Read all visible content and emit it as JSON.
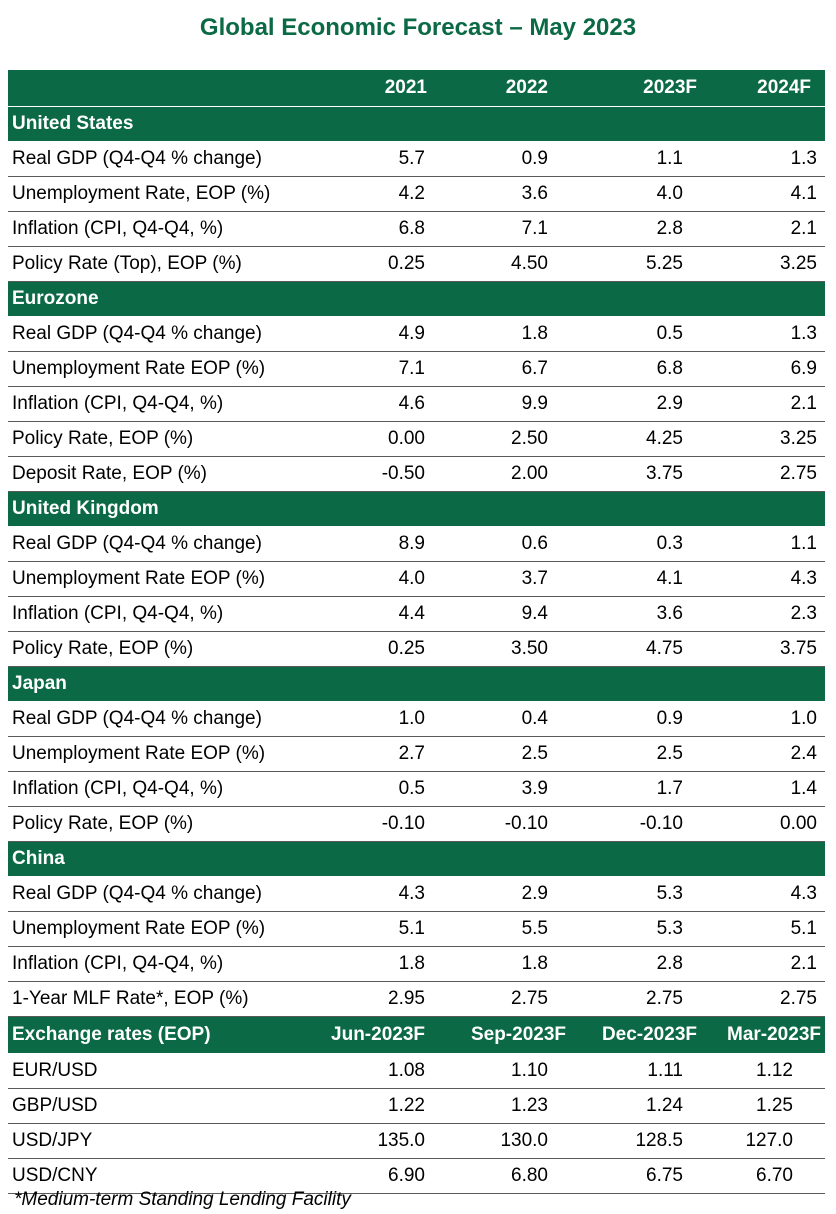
{
  "title": "Global Economic Forecast – May 2023",
  "columns": [
    "",
    "2021",
    "2022",
    "2023F",
    "2024F"
  ],
  "sections": [
    {
      "name": "United States",
      "rows": [
        {
          "label": "Real GDP (Q4-Q4 % change)",
          "values": [
            "5.7",
            "0.9",
            "1.1",
            "1.3"
          ]
        },
        {
          "label": "Unemployment Rate, EOP (%)",
          "values": [
            "4.2",
            "3.6",
            "4.0",
            "4.1"
          ]
        },
        {
          "label": "Inflation (CPI, Q4-Q4, %)",
          "values": [
            "6.8",
            "7.1",
            "2.8",
            "2.1"
          ]
        },
        {
          "label": "Policy Rate (Top), EOP (%)",
          "values": [
            "0.25",
            "4.50",
            "5.25",
            "3.25"
          ]
        }
      ]
    },
    {
      "name": "Eurozone",
      "rows": [
        {
          "label": "Real GDP (Q4-Q4 % change)",
          "values": [
            "4.9",
            "1.8",
            "0.5",
            "1.3"
          ]
        },
        {
          "label": "Unemployment Rate EOP (%)",
          "values": [
            "7.1",
            "6.7",
            "6.8",
            "6.9"
          ]
        },
        {
          "label": "Inflation (CPI, Q4-Q4, %)",
          "values": [
            "4.6",
            "9.9",
            "2.9",
            "2.1"
          ]
        },
        {
          "label": "Policy Rate, EOP (%)",
          "values": [
            "0.00",
            "2.50",
            "4.25",
            "3.25"
          ]
        },
        {
          "label": "Deposit Rate, EOP (%)",
          "values": [
            "-0.50",
            "2.00",
            "3.75",
            "2.75"
          ]
        }
      ]
    },
    {
      "name": "United Kingdom",
      "rows": [
        {
          "label": "Real GDP (Q4-Q4 % change)",
          "values": [
            "8.9",
            "0.6",
            "0.3",
            "1.1"
          ]
        },
        {
          "label": "Unemployment Rate EOP (%)",
          "values": [
            "4.0",
            "3.7",
            "4.1",
            "4.3"
          ]
        },
        {
          "label": "Inflation (CPI, Q4-Q4, %)",
          "values": [
            "4.4",
            "9.4",
            "3.6",
            "2.3"
          ]
        },
        {
          "label": "Policy Rate, EOP (%)",
          "values": [
            "0.25",
            "3.50",
            "4.75",
            "3.75"
          ]
        }
      ]
    },
    {
      "name": "Japan",
      "rows": [
        {
          "label": "Real GDP (Q4-Q4 % change)",
          "values": [
            "1.0",
            "0.4",
            "0.9",
            "1.0"
          ]
        },
        {
          "label": "Unemployment Rate EOP (%)",
          "values": [
            "2.7",
            "2.5",
            "2.5",
            "2.4"
          ]
        },
        {
          "label": "Inflation (CPI, Q4-Q4, %)",
          "values": [
            "0.5",
            "3.9",
            "1.7",
            "1.4"
          ]
        },
        {
          "label": "Policy Rate, EOP (%)",
          "values": [
            "-0.10",
            "-0.10",
            "-0.10",
            "0.00"
          ]
        }
      ]
    },
    {
      "name": "China",
      "rows": [
        {
          "label": "Real GDP (Q4-Q4 % change)",
          "values": [
            "4.3",
            "2.9",
            "5.3",
            "4.3"
          ]
        },
        {
          "label": "Unemployment Rate EOP (%)",
          "values": [
            "5.1",
            "5.5",
            "5.3",
            "5.1"
          ]
        },
        {
          "label": "Inflation (CPI, Q4-Q4, %)",
          "values": [
            "1.8",
            "1.8",
            "2.8",
            "2.1"
          ]
        },
        {
          "label": "1-Year MLF Rate*, EOP (%)",
          "values": [
            "2.95",
            "2.75",
            "2.75",
            "2.75"
          ]
        }
      ]
    }
  ],
  "fx": {
    "columns": [
      "Exchange rates (EOP)",
      "Jun-2023F",
      "Sep-2023F",
      "Dec-2023F",
      "Mar-2023F"
    ],
    "rows": [
      {
        "label": "EUR/USD",
        "values": [
          "1.08",
          "1.10",
          "1.11",
          "1.12"
        ]
      },
      {
        "label": "GBP/USD",
        "values": [
          "1.22",
          "1.23",
          "1.24",
          "1.25"
        ]
      },
      {
        "label": "USD/JPY",
        "values": [
          "135.0",
          "130.0",
          "128.5",
          "127.0"
        ]
      },
      {
        "label": "USD/CNY",
        "values": [
          "6.90",
          "6.80",
          "6.75",
          "6.70"
        ]
      }
    ]
  },
  "footnote": "*Medium-term Standing Lending Facility",
  "colors": {
    "accent": "#0b6a45",
    "header_text": "#ffffff",
    "rule": "#5a5a5a"
  }
}
